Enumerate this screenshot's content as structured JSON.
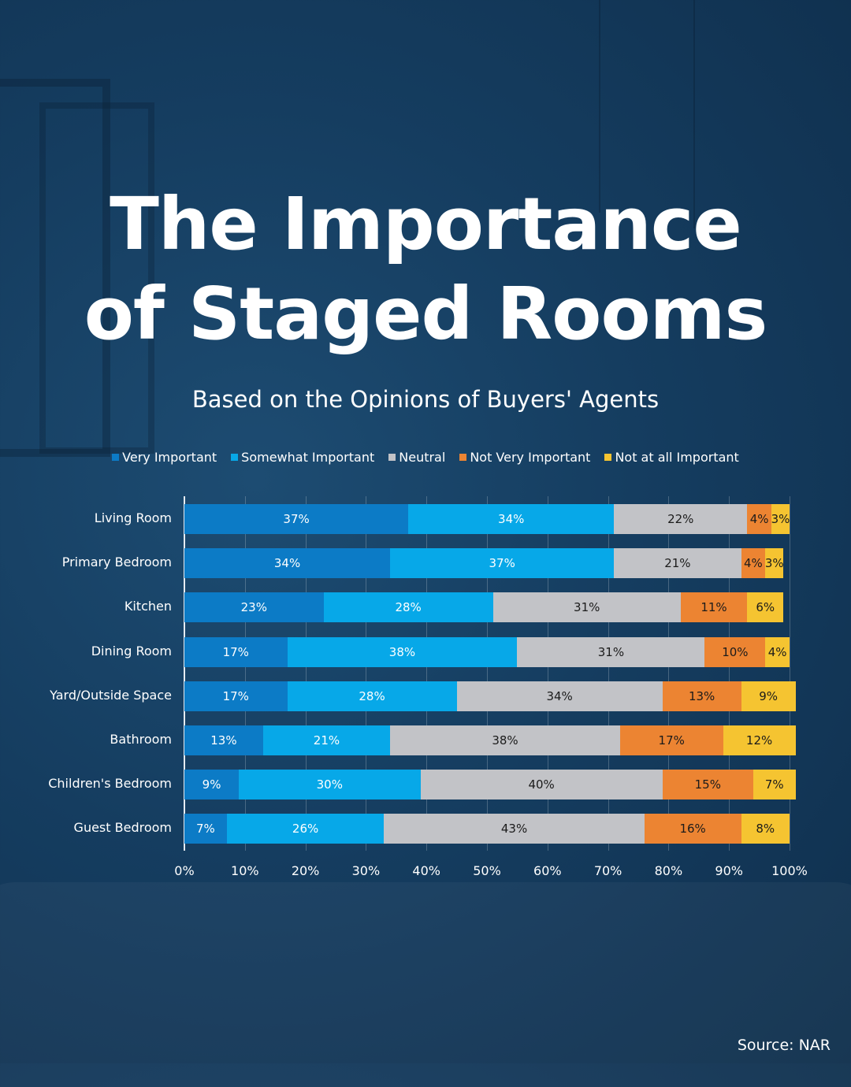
{
  "header": {
    "title_line1": "The Importance",
    "title_line2": "of Staged Rooms",
    "subtitle": "Based on the Opinions of Buyers' Agents"
  },
  "footer": {
    "source": "Source: NAR"
  },
  "colors": {
    "very_important": "#0c7bc6",
    "somewhat_important": "#07a8e8",
    "neutral": "#c2c3c7",
    "not_very_important": "#ec8432",
    "not_at_all_important": "#f5c431"
  },
  "chart_data": {
    "type": "bar",
    "orientation": "horizontal",
    "stacked": true,
    "categories": [
      "Living Room",
      "Primary Bedroom",
      "Kitchen",
      "Dining Room",
      "Yard/Outside Space",
      "Bathroom",
      "Children's Bedroom",
      "Guest Bedroom"
    ],
    "series": [
      {
        "name": "Very Important",
        "color": "#0c7bc6",
        "values": [
          37,
          34,
          23,
          17,
          17,
          13,
          9,
          7
        ]
      },
      {
        "name": "Somewhat Important",
        "color": "#07a8e8",
        "values": [
          34,
          37,
          28,
          38,
          28,
          21,
          30,
          26
        ]
      },
      {
        "name": "Neutral",
        "color": "#c2c3c7",
        "values": [
          22,
          21,
          31,
          31,
          34,
          38,
          40,
          43
        ]
      },
      {
        "name": "Not Very Important",
        "color": "#ec8432",
        "values": [
          4,
          4,
          11,
          10,
          13,
          17,
          15,
          16
        ]
      },
      {
        "name": "Not at all Important",
        "color": "#f5c431",
        "values": [
          3,
          3,
          6,
          4,
          9,
          12,
          7,
          8
        ]
      }
    ],
    "x_ticks": [
      "0%",
      "10%",
      "20%",
      "30%",
      "40%",
      "50%",
      "60%",
      "70%",
      "80%",
      "90%",
      "100%"
    ],
    "xlim": [
      0,
      100
    ],
    "value_suffix": "%",
    "grid": true,
    "legend_position": "top"
  }
}
